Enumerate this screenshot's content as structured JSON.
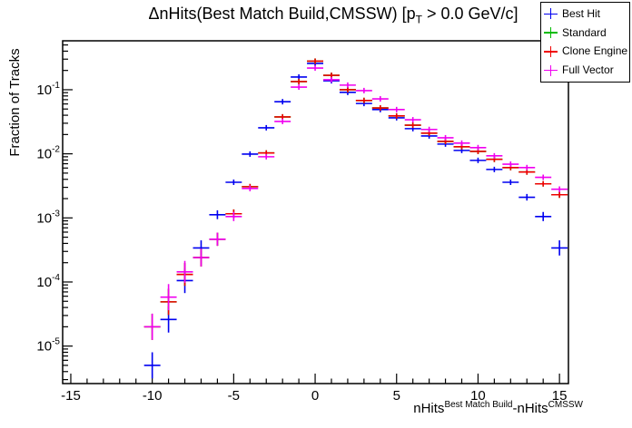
{
  "title": {
    "part1": "ΔnHits(Best Match Build,CMSSW) [p",
    "sub": "T",
    "part2": " > 0.0 GeV/c]"
  },
  "axes": {
    "y_label": "Fraction of Tracks",
    "x_label": {
      "part1": "nHits",
      "sup1": "Best Match Build",
      "part2": "-nHits",
      "sup2": "CMSSW"
    },
    "x_ticks": [
      -15,
      -10,
      -5,
      0,
      5,
      10,
      15
    ],
    "y_tick_exponents": [
      -1,
      -2,
      -3,
      -4,
      -5
    ]
  },
  "legend": {
    "items": [
      {
        "label": "Best Hit",
        "color": "#0000f0"
      },
      {
        "label": "Standard",
        "color": "#00bb00"
      },
      {
        "label": "Clone Engine",
        "color": "#f00000"
      },
      {
        "label": "Full Vector",
        "color": "#f000f0"
      }
    ]
  },
  "chart_data": {
    "type": "histogram-errorbar",
    "title": "ΔnHits(Best Match Build,CMSSW) [pT > 0.0 GeV/c]",
    "xlabel": "nHits^{Best Match Build}-nHits^{CMSSW}",
    "ylabel": "Fraction of Tracks",
    "yscale": "log",
    "xlim": [
      -15.5,
      15.55
    ],
    "ylim": [
      2.6e-06,
      0.58
    ],
    "bin_width": 1,
    "bin_centers": [
      -10,
      -9,
      -8,
      -7,
      -6,
      -5,
      -4,
      -3,
      -2,
      -1,
      0,
      1,
      2,
      3,
      4,
      5,
      6,
      7,
      8,
      9,
      10,
      11,
      12,
      13,
      14,
      15
    ],
    "series": [
      {
        "name": "Best Hit",
        "color": "#0000f0",
        "values": [
          5e-06,
          2.6e-05,
          0.000105,
          0.00034,
          0.00112,
          0.0036,
          0.0099,
          0.0255,
          0.065,
          0.158,
          0.257,
          0.138,
          0.091,
          0.061,
          0.049,
          0.0365,
          0.0247,
          0.019,
          0.0142,
          0.0113,
          0.0079,
          0.0057,
          0.0036,
          0.0021,
          0.00105,
          0.00034
        ]
      },
      {
        "name": "Standard",
        "color": "#00bb00",
        "values": [
          2e-05,
          4.9e-05,
          0.000131,
          0.00024,
          0.000465,
          0.00116,
          0.00307,
          0.0103,
          0.0377,
          0.134,
          0.279,
          0.168,
          0.1,
          0.068,
          0.052,
          0.039,
          0.028,
          0.021,
          0.0156,
          0.0129,
          0.0109,
          0.0082,
          0.0061,
          0.0052,
          0.0034,
          0.0023
        ]
      },
      {
        "name": "Clone Engine",
        "color": "#f00000",
        "values": [
          2e-05,
          4.9e-05,
          0.000131,
          0.00024,
          0.000465,
          0.00116,
          0.00307,
          0.0103,
          0.0377,
          0.134,
          0.279,
          0.168,
          0.1,
          0.068,
          0.052,
          0.039,
          0.028,
          0.021,
          0.0156,
          0.0129,
          0.0109,
          0.0082,
          0.0061,
          0.0052,
          0.0034,
          0.0023
        ]
      },
      {
        "name": "Full Vector",
        "color": "#f000f0",
        "values": [
          2e-05,
          5.8e-05,
          0.000144,
          0.00024,
          0.000465,
          0.00105,
          0.00288,
          0.009,
          0.032,
          0.11,
          0.218,
          0.143,
          0.118,
          0.097,
          0.072,
          0.049,
          0.034,
          0.024,
          0.0178,
          0.0147,
          0.0125,
          0.0093,
          0.0069,
          0.0061,
          0.0043,
          0.0028
        ]
      }
    ],
    "legend_position": "top-right",
    "grid": false
  }
}
